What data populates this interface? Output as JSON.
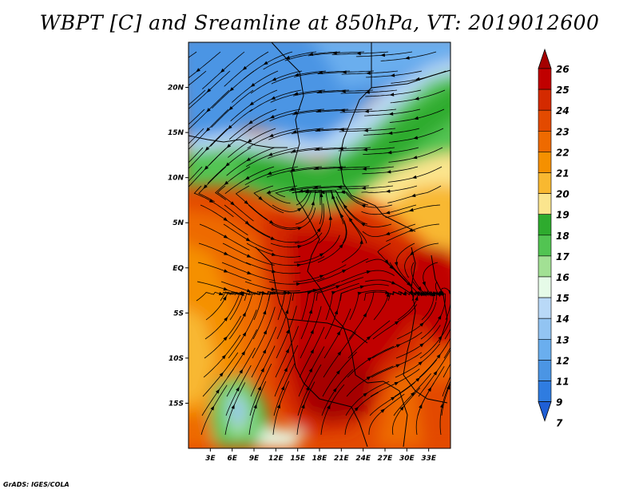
{
  "title": "WBPT [C] and Sreamline at 850hPa, VT: 2019012600",
  "footer": "GrADS: IGES/COLA",
  "map": {
    "lon_range": [
      0,
      36
    ],
    "lat_range": [
      -20,
      25
    ],
    "lat_ticks": [
      "20N",
      "15N",
      "10N",
      "5N",
      "EQ",
      "5S",
      "10S",
      "15S"
    ],
    "lat_values": [
      20,
      15,
      10,
      5,
      0,
      -5,
      -10,
      -15
    ],
    "lon_ticks": [
      "3E",
      "6E",
      "9E",
      "12E",
      "15E",
      "18E",
      "21E",
      "24E",
      "27E",
      "30E",
      "33E"
    ],
    "lon_values": [
      3,
      6,
      9,
      12,
      15,
      18,
      21,
      24,
      27,
      30,
      33
    ]
  },
  "colorbar": {
    "labels": [
      "26",
      "25",
      "24",
      "23",
      "22",
      "21",
      "20",
      "19",
      "18",
      "17",
      "16",
      "15",
      "14",
      "13",
      "12",
      "11",
      "9",
      "7"
    ],
    "colors": [
      "#a50000",
      "#c00000",
      "#d42a00",
      "#e34a00",
      "#ee6a00",
      "#f59000",
      "#f8b830",
      "#fbe58e",
      "#2eab2e",
      "#52c452",
      "#a2e094",
      "#e6fbe8",
      "#b9d9f7",
      "#92c4f2",
      "#6aaeee",
      "#4b95e4",
      "#2f7ce0",
      "#1f5fd6"
    ]
  },
  "icons": {
    "colorbar-top": "triangle-up-icon",
    "colorbar-bottom": "triangle-down-icon"
  }
}
